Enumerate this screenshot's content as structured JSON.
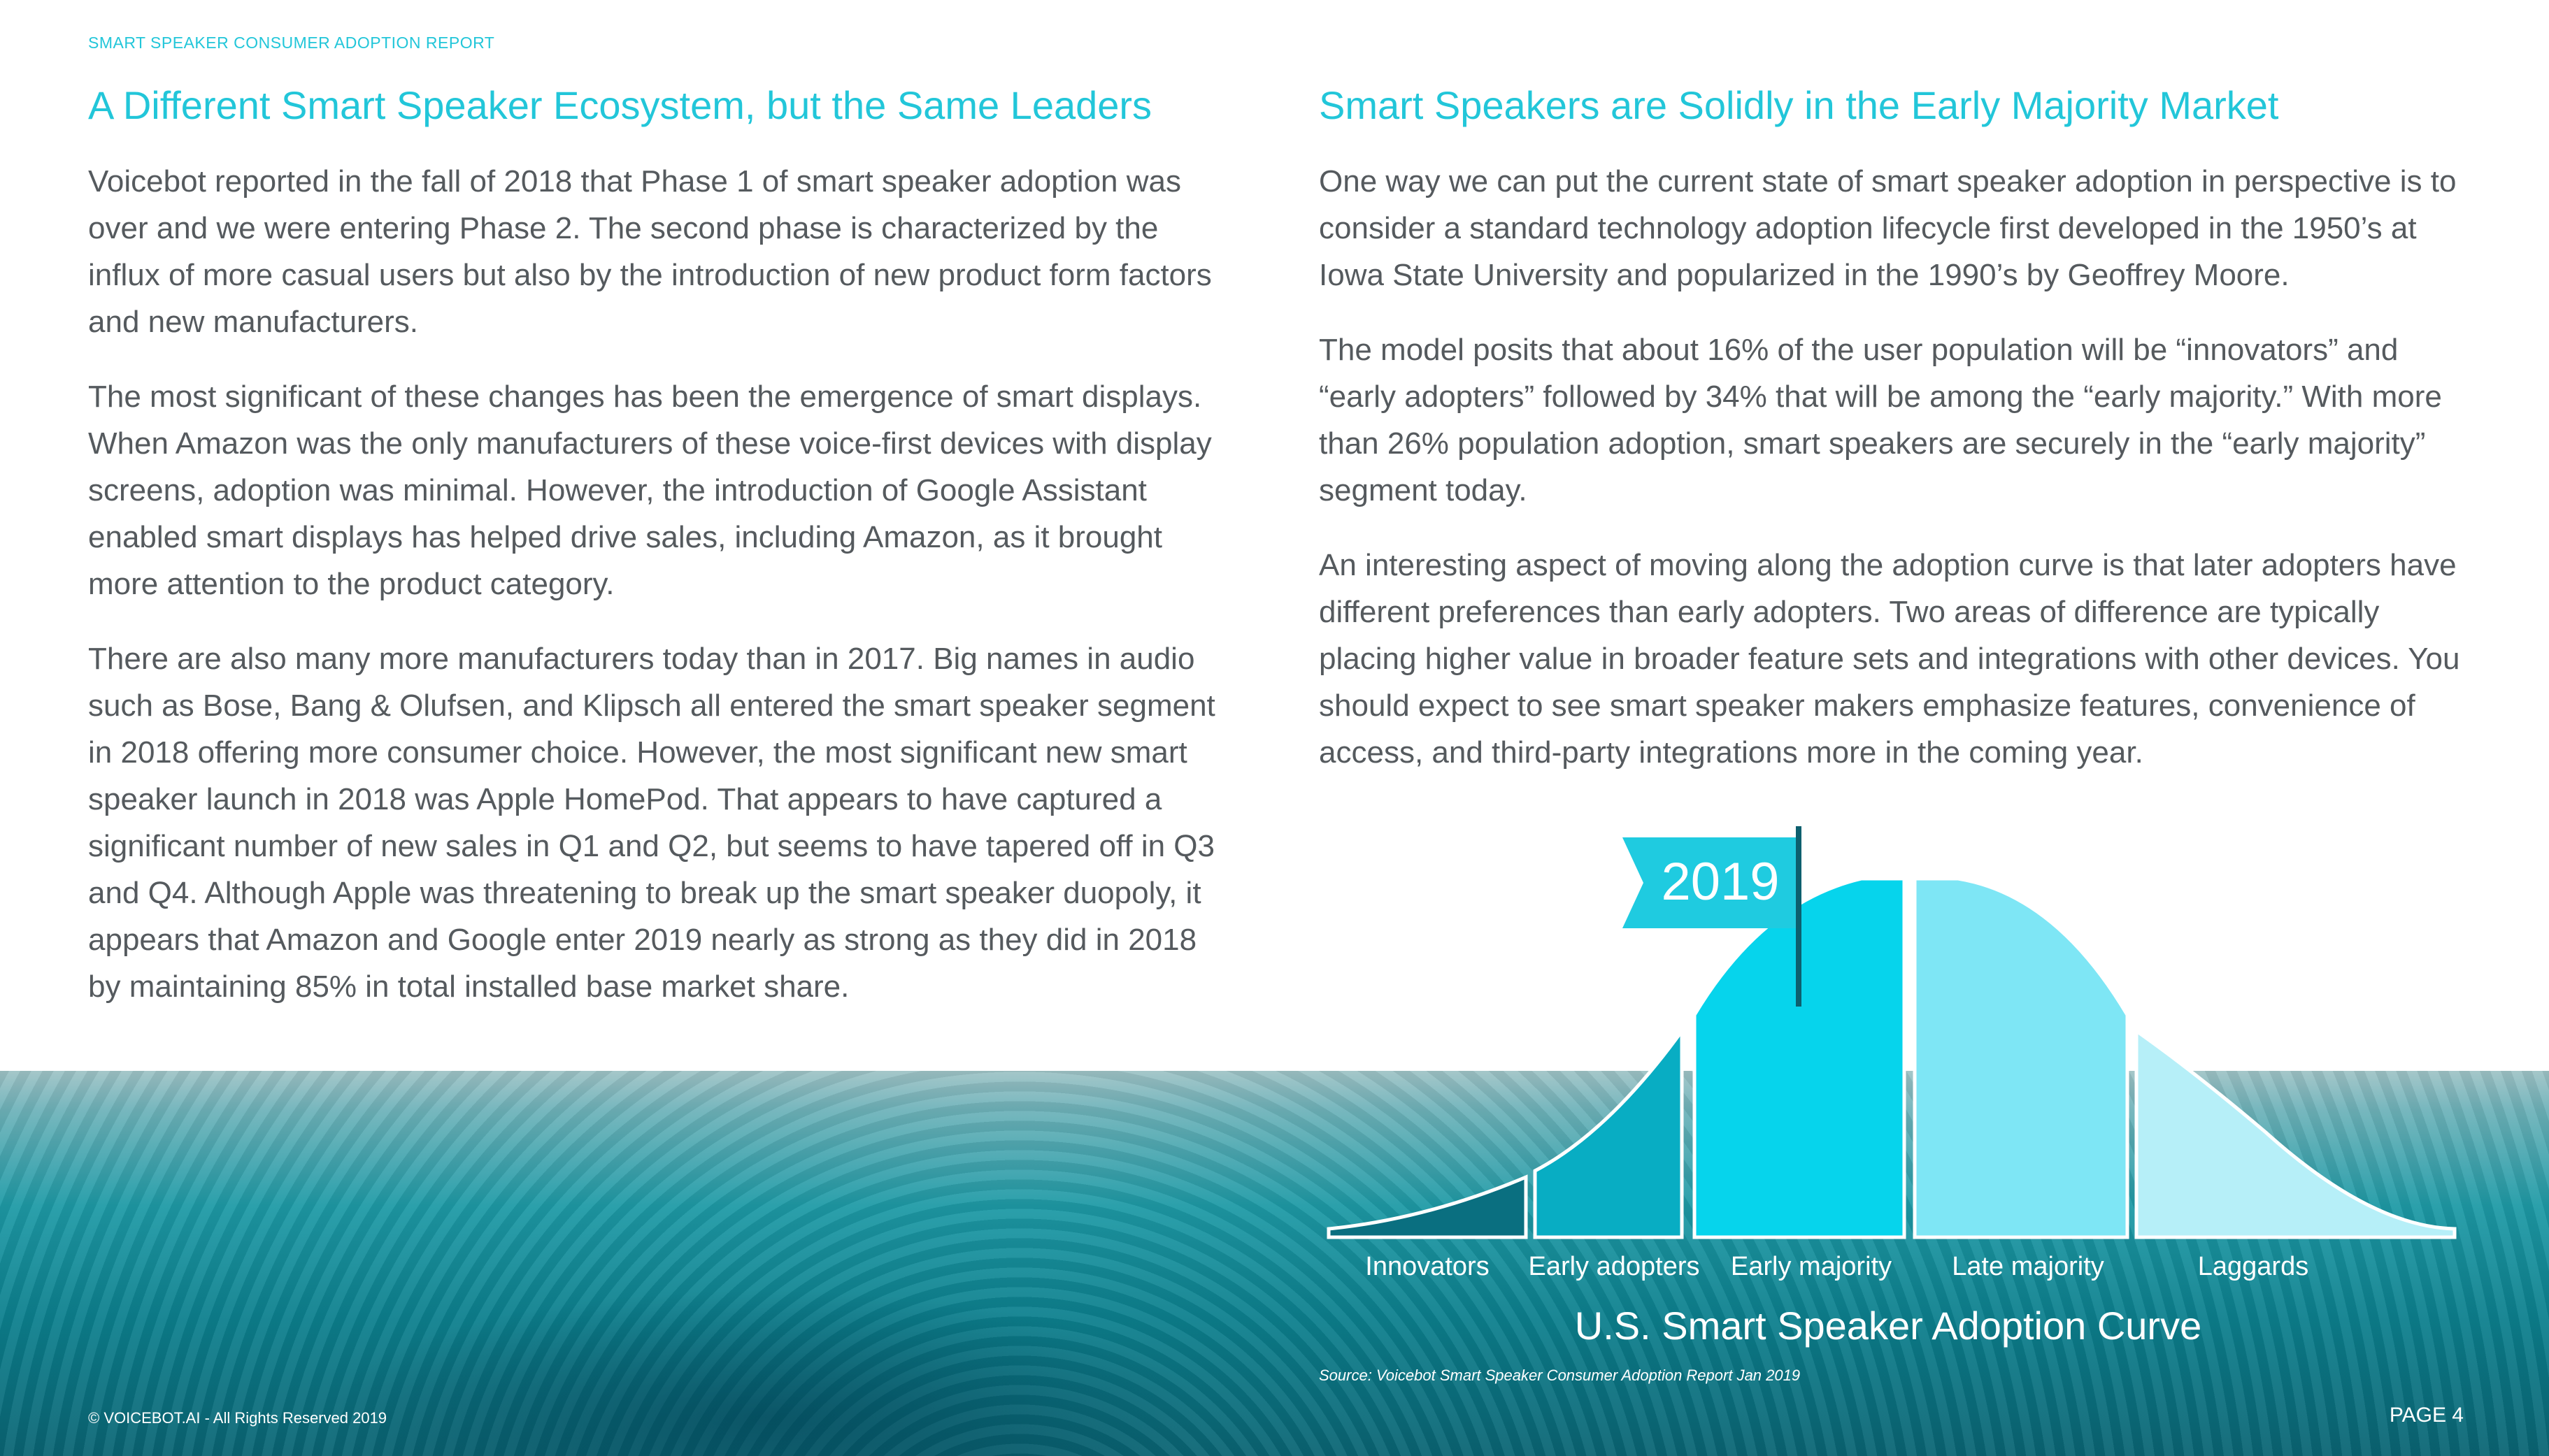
{
  "header": {
    "report_label": "SMART SPEAKER CONSUMER ADOPTION REPORT"
  },
  "left": {
    "title": "A Different Smart Speaker Ecosystem, but the Same Leaders",
    "paragraphs": [
      "Voicebot reported in the fall of 2018 that Phase 1 of smart speaker adoption was over and we were entering Phase 2. The second phase is characterized by the influx of more casual users but also by the introduction of new product form factors and new manufacturers.",
      "The most significant of these changes has been the emergence of smart displays. When Amazon was the only manufacturers of these voice-first devices with display screens, adoption was minimal. However, the introduction of Google Assistant enabled smart displays has helped drive sales, including Amazon, as it brought more attention to the product category.",
      "There are also many more manufacturers today than in 2017. Big names in audio such as Bose, Bang & Olufsen, and Klipsch all entered the smart speaker segment in 2018 offering more consumer choice. However, the most significant new smart speaker launch in 2018 was Apple HomePod. That appears to have captured a significant number of new sales in Q1 and Q2, but seems to have tapered off in Q3 and Q4. Although Apple was threatening to break up the smart speaker duopoly, it appears that Amazon and Google enter 2019 nearly as strong as they did in 2018 by maintaining 85% in total installed base market share."
    ]
  },
  "right": {
    "title": "Smart Speakers are Solidly in the Early Majority Market",
    "paragraphs": [
      "One way we can put the current state of smart speaker adoption in perspective is to consider a standard technology adoption lifecycle first developed in the 1950’s at Iowa State University and popularized in the 1990’s by Geoffrey Moore.",
      "The model posits that about 16% of the user population will be “innovators” and “early adopters” followed by 34% that will be among the “early majority.” With more than 26% population adoption, smart speakers are securely in the “early majority” segment today.",
      "An interesting aspect of moving along the adoption curve is that later adopters have different preferences than early adopters. Two areas of difference are typically placing higher value in broader feature sets and integrations with other devices. You should expect to see smart speaker makers emphasize features, convenience of access, and third-party integrations more in the coming year."
    ]
  },
  "chart_data": {
    "type": "area",
    "title": "U.S. Smart Speaker Adoption Curve",
    "categories": [
      "Innovators",
      "Early adopters",
      "Early majority",
      "Late majority",
      "Laggards"
    ],
    "marker_label": "2019",
    "segment_colors": [
      "#0a6f80",
      "#08adc3",
      "#06d4ec",
      "#7ee6f5",
      "#b6eff8"
    ]
  },
  "source": "Source: Voicebot Smart Speaker Consumer Adoption Report Jan 2019",
  "footer": {
    "copyright": "© VOICEBOT.AI - All Rights Reserved 2019",
    "page": "PAGE 4"
  }
}
